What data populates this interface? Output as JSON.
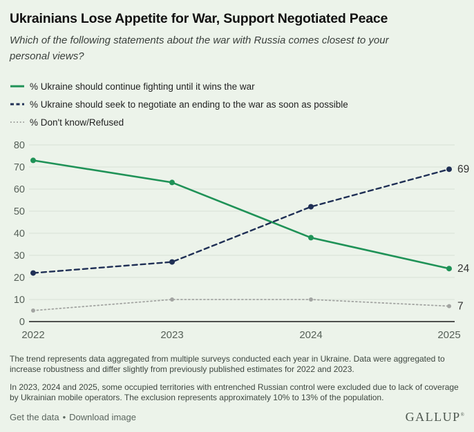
{
  "header": {
    "title": "Ukrainians Lose Appetite for War, Support Negotiated Peace",
    "subtitle": "Which of the following statements about the war with Russia comes closest to your personal views?"
  },
  "colors": {
    "background": "#ecf3ea",
    "fighting_green": "#1f9257",
    "negotiate_navy": "#1f2f55",
    "dontknow_gray": "#a3a5a2",
    "gridline": "#d7e0d7",
    "axis_line": "#1a1a1a",
    "tick_label": "#566058",
    "end_label": "#333333"
  },
  "chart_data": {
    "type": "line",
    "title": "",
    "xlabel": "",
    "ylabel": "",
    "x": [
      "2022",
      "2023",
      "2024",
      "2025"
    ],
    "series": [
      {
        "name": "% Ukraine should continue fighting until it wins the war",
        "values": [
          73,
          63,
          38,
          24
        ],
        "color": "#1f9257",
        "style": "solid",
        "end_label": "24"
      },
      {
        "name": "% Ukraine should seek to negotiate an ending to the war as soon as possible",
        "values": [
          22,
          27,
          52,
          69
        ],
        "color": "#1f2f55",
        "style": "dashed",
        "end_label": "69"
      },
      {
        "name": "% Don't know/Refused",
        "values": [
          5,
          10,
          10,
          7
        ],
        "color": "#a3a5a2",
        "style": "dotted",
        "end_label": "7"
      }
    ],
    "ylim": [
      0,
      80
    ],
    "yticks": [
      0,
      10,
      20,
      30,
      40,
      50,
      60,
      70,
      80
    ],
    "grid": true,
    "legend_position": "top-left"
  },
  "footnotes": [
    "The trend represents data aggregated from multiple surveys conducted each year in Ukraine. Data were aggregated to increase robustness and differ slightly from previously published estimates for 2022 and 2023.",
    "In 2023, 2024 and 2025, some occupied territories with entrenched Russian control were excluded due to lack of coverage by Ukrainian mobile operators. The exclusion represents approximately 10% to 13% of the population."
  ],
  "footer": {
    "links": [
      "Get the data",
      "Download image"
    ],
    "separator": "•",
    "brand": "GALLUP",
    "brand_mark": "®"
  }
}
